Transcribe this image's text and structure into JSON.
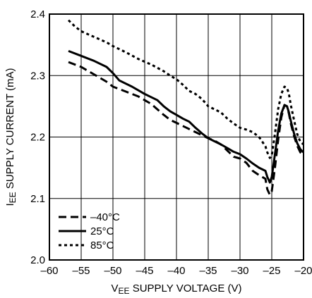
{
  "chart_data": {
    "type": "line",
    "xlabel_main": "V",
    "xlabel_sub": "EE",
    "xlabel_rest": " SUPPLY VOLTAGE (V)",
    "ylabel_main": "I",
    "ylabel_sub": "EE",
    "ylabel_rest": " SUPPLY CURRENT (mA)",
    "xlim": [
      -60,
      -20
    ],
    "ylim": [
      2.0,
      2.4
    ],
    "x_ticks": [
      -60,
      -55,
      -50,
      -45,
      -40,
      -35,
      -30,
      -25,
      -20
    ],
    "x_tick_labels": [
      "–60",
      "–55",
      "–50",
      "–45",
      "–40",
      "–35",
      "–30",
      "–25",
      "–20"
    ],
    "y_ticks": [
      2.0,
      2.1,
      2.2,
      2.3,
      2.4
    ],
    "y_tick_labels": [
      "2.0",
      "2.1",
      "2.2",
      "2.3",
      "2.4"
    ],
    "grid": true,
    "legend_position": "bottom-left",
    "series": [
      {
        "name": "–40°C",
        "style": "dashed",
        "x": [
          -57,
          -55,
          -53,
          -51,
          -50,
          -48,
          -46,
          -45,
          -44,
          -43,
          -42,
          -41,
          -40,
          -39,
          -38,
          -37,
          -36,
          -35,
          -34,
          -33,
          -32,
          -31,
          -30,
          -29,
          -28,
          -27,
          -26,
          -25.7,
          -25.3,
          -25,
          -24.5,
          -24,
          -23.5,
          -23,
          -22.6,
          -22.3,
          -22,
          -21.5,
          -21,
          -20.5,
          -20
        ],
        "y": [
          2.322,
          2.314,
          2.302,
          2.29,
          2.282,
          2.274,
          2.266,
          2.26,
          2.254,
          2.245,
          2.236,
          2.228,
          2.223,
          2.218,
          2.213,
          2.208,
          2.203,
          2.198,
          2.194,
          2.188,
          2.178,
          2.168,
          2.165,
          2.158,
          2.145,
          2.138,
          2.132,
          2.115,
          2.106,
          2.112,
          2.15,
          2.195,
          2.232,
          2.252,
          2.25,
          2.238,
          2.222,
          2.202,
          2.186,
          2.175,
          2.17
        ]
      },
      {
        "name": "25°C",
        "style": "solid",
        "x": [
          -57,
          -55,
          -53,
          -51,
          -50,
          -49,
          -47,
          -46,
          -45,
          -44,
          -43,
          -42,
          -41,
          -40,
          -39,
          -38,
          -37,
          -36,
          -35,
          -34,
          -33,
          -32,
          -31,
          -30,
          -29,
          -28,
          -27,
          -26,
          -25.7,
          -25.3,
          -25,
          -24.5,
          -24,
          -23.5,
          -23,
          -22.6,
          -22.3,
          -22,
          -21.5,
          -21,
          -20.5,
          -20
        ],
        "y": [
          2.34,
          2.332,
          2.324,
          2.314,
          2.304,
          2.292,
          2.282,
          2.276,
          2.27,
          2.265,
          2.26,
          2.25,
          2.242,
          2.236,
          2.23,
          2.225,
          2.215,
          2.206,
          2.198,
          2.193,
          2.188,
          2.182,
          2.176,
          2.172,
          2.165,
          2.157,
          2.15,
          2.145,
          2.135,
          2.126,
          2.135,
          2.172,
          2.21,
          2.238,
          2.252,
          2.25,
          2.24,
          2.226,
          2.206,
          2.19,
          2.18,
          2.175
        ]
      },
      {
        "name": "85°C",
        "style": "dotted",
        "x": [
          -57,
          -56,
          -55,
          -53,
          -51,
          -50,
          -48,
          -46,
          -44,
          -42,
          -41,
          -40,
          -39,
          -38,
          -37,
          -36,
          -35,
          -34,
          -33,
          -32,
          -31,
          -30,
          -29,
          -28,
          -27,
          -26,
          -25.7,
          -25.3,
          -25,
          -24.5,
          -24,
          -23.5,
          -23,
          -22.6,
          -22.3,
          -22,
          -21.5,
          -21,
          -20.5,
          -20
        ],
        "y": [
          2.39,
          2.38,
          2.372,
          2.363,
          2.354,
          2.348,
          2.338,
          2.327,
          2.318,
          2.307,
          2.3,
          2.294,
          2.285,
          2.275,
          2.27,
          2.262,
          2.25,
          2.245,
          2.24,
          2.23,
          2.222,
          2.215,
          2.212,
          2.208,
          2.2,
          2.185,
          2.175,
          2.166,
          2.17,
          2.205,
          2.245,
          2.27,
          2.282,
          2.28,
          2.27,
          2.252,
          2.228,
          2.205,
          2.192,
          2.188
        ]
      }
    ]
  }
}
